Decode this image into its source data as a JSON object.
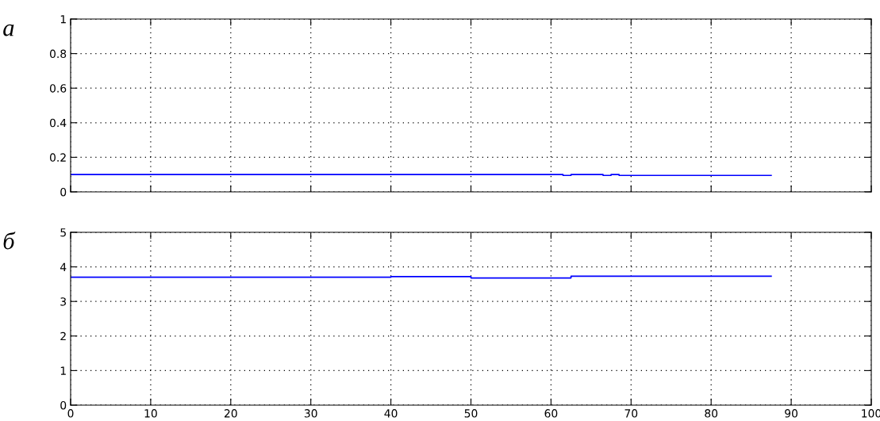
{
  "chart_data": [
    {
      "type": "step",
      "title": "а",
      "x": [
        0,
        61.5,
        62.5,
        66.5,
        67.5,
        68.5,
        87.5
      ],
      "series": [
        {
          "color": "#0000ff",
          "values": [
            0.1,
            0.095,
            0.1,
            0.095,
            0.1,
            0.095,
            0.095
          ]
        }
      ],
      "xlim": [
        0,
        100
      ],
      "xticks": [
        0,
        10,
        20,
        30,
        40,
        50,
        60,
        70,
        80,
        90,
        100
      ],
      "ylim": [
        0,
        1
      ],
      "yticks": [
        0,
        0.2,
        0.4,
        0.6,
        0.8,
        1
      ],
      "grid": true,
      "line_style": "solid",
      "tick_labels": "y"
    },
    {
      "type": "step",
      "title": "б",
      "x": [
        0,
        40,
        50,
        62.5,
        87.5
      ],
      "series": [
        {
          "color": "#0000ff",
          "values": [
            3.7,
            3.72,
            3.68,
            3.73,
            3.73
          ]
        }
      ],
      "xlim": [
        0,
        100
      ],
      "xticks": [
        0,
        10,
        20,
        30,
        40,
        50,
        60,
        70,
        80,
        90,
        100
      ],
      "ylim": [
        0,
        5
      ],
      "yticks": [
        0,
        1,
        2,
        3,
        4,
        5
      ],
      "grid": true,
      "line_style": "solid"
    }
  ]
}
